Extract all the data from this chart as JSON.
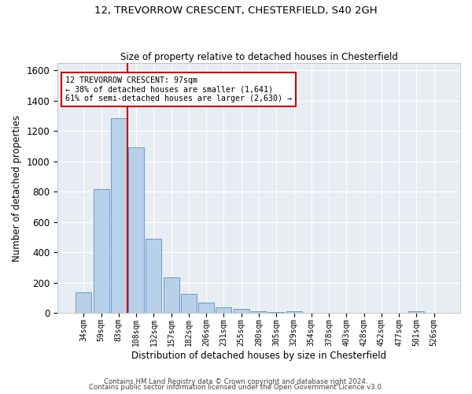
{
  "title1": "12, TREVORROW CRESCENT, CHESTERFIELD, S40 2GH",
  "title2": "Size of property relative to detached houses in Chesterfield",
  "xlabel": "Distribution of detached houses by size in Chesterfield",
  "ylabel": "Number of detached properties",
  "footer1": "Contains HM Land Registry data © Crown copyright and database right 2024.",
  "footer2": "Contains public sector information licensed under the Open Government Licence v3.0.",
  "bar_color": "#b8d0e8",
  "bar_edge_color": "#6699cc",
  "background_color": "#e8edf4",
  "grid_color": "#ffffff",
  "annotation_box_color": "#cc0000",
  "vline_color": "#cc0000",
  "categories": [
    "34sqm",
    "59sqm",
    "83sqm",
    "108sqm",
    "132sqm",
    "157sqm",
    "182sqm",
    "206sqm",
    "231sqm",
    "255sqm",
    "280sqm",
    "305sqm",
    "329sqm",
    "354sqm",
    "378sqm",
    "403sqm",
    "428sqm",
    "452sqm",
    "477sqm",
    "501sqm",
    "526sqm"
  ],
  "values": [
    137,
    815,
    1285,
    1093,
    492,
    237,
    127,
    68,
    38,
    27,
    15,
    5,
    13,
    0,
    0,
    0,
    0,
    0,
    0,
    13,
    0
  ],
  "property_label": "12 TREVORROW CRESCENT: 97sqm",
  "pct_smaller": "38% of detached houses are smaller (1,641)",
  "pct_larger": "61% of semi-detached houses are larger (2,630)",
  "vline_x": 2.5,
  "ylim_max": 1650,
  "yticks": [
    0,
    200,
    400,
    600,
    800,
    1000,
    1200,
    1400,
    1600
  ]
}
